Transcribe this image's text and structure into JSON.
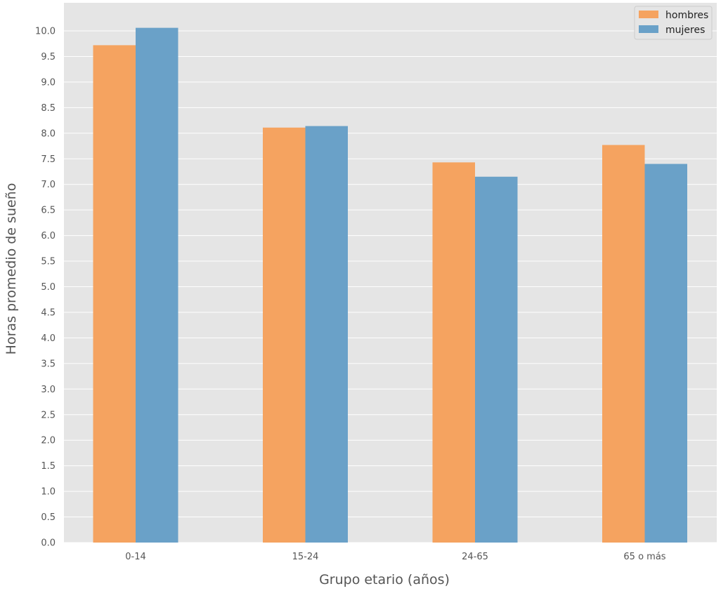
{
  "chart_data": {
    "type": "bar",
    "title": "",
    "xlabel": "Grupo etario (años)",
    "ylabel": "Horas promedio de sueño",
    "categories": [
      "0-14",
      "15-24",
      "24-65",
      "65 o más"
    ],
    "series": [
      {
        "name": "hombres",
        "values": [
          9.72,
          8.11,
          7.43,
          7.77
        ],
        "color": "#f5a360"
      },
      {
        "name": "mujeres",
        "values": [
          10.06,
          8.14,
          7.15,
          7.4
        ],
        "color": "#6aa1c8"
      }
    ],
    "ylim": [
      0,
      10.5
    ],
    "yticks": [
      "0.0",
      "0.5",
      "1.0",
      "1.5",
      "2.0",
      "2.5",
      "3.0",
      "3.5",
      "4.0",
      "4.5",
      "5.0",
      "5.5",
      "6.0",
      "6.5",
      "7.0",
      "7.5",
      "8.0",
      "8.5",
      "9.0",
      "9.5",
      "10.0"
    ],
    "grid": true,
    "legend_position": "top-right",
    "background_color": "#e5e5e5"
  }
}
